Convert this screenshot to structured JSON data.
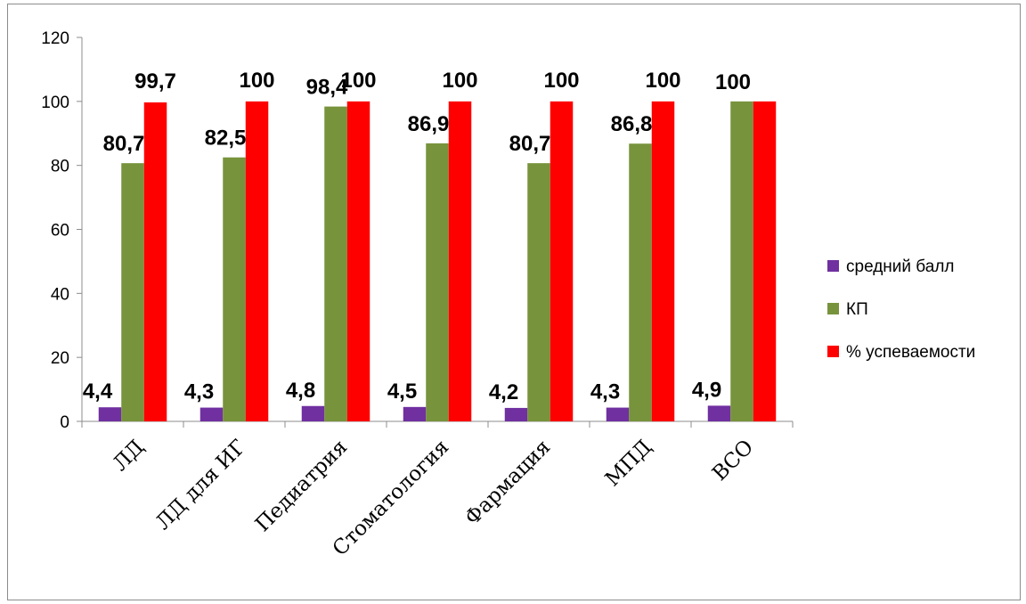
{
  "chart_data": {
    "type": "bar",
    "categories": [
      "ЛД",
      "ЛД для ИГ",
      "Педиатрия",
      "Стоматология",
      "Фармация",
      "МПД",
      "ВСО"
    ],
    "series": [
      {
        "name": "средний балл",
        "color": "#7030A0",
        "values": [
          4.4,
          4.3,
          4.8,
          4.5,
          4.2,
          4.3,
          4.9
        ],
        "labels": [
          "4,4",
          "4,3",
          "4,8",
          "4,5",
          "4,2",
          "4,3",
          "4,9"
        ]
      },
      {
        "name": "КП",
        "color": "#77933C",
        "values": [
          80.7,
          82.5,
          98.4,
          86.9,
          80.7,
          86.8,
          100
        ],
        "labels": [
          "80,7",
          "82,5",
          "98,4",
          "86,9",
          "80,7",
          "86,8",
          "100"
        ]
      },
      {
        "name": "% успеваемости",
        "color": "#FF0000",
        "values": [
          99.7,
          100,
          100,
          100,
          100,
          100,
          100
        ],
        "labels": [
          "99,7",
          "100",
          "100",
          "100",
          "100",
          "100",
          ""
        ]
      }
    ],
    "y_ticks": [
      "0",
      "20",
      "40",
      "60",
      "80",
      "100",
      "120"
    ],
    "ylim": [
      0,
      120
    ],
    "legend_position": "right",
    "grid": false
  }
}
